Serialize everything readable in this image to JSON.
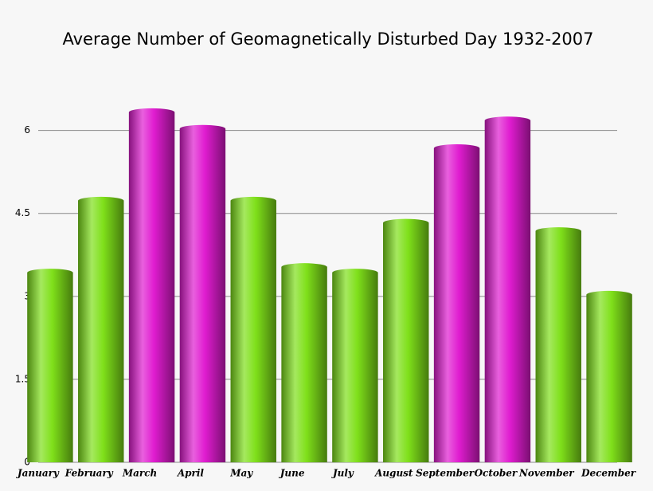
{
  "chart_data": {
    "type": "bar",
    "title": "Average Number of Geomagnetically Disturbed Day 1932-2007",
    "categories": [
      "January",
      "February",
      "March",
      "April",
      "May",
      "June",
      "July",
      "August",
      "September",
      "October",
      "November",
      "December"
    ],
    "values": [
      3.5,
      4.8,
      6.4,
      6.1,
      4.8,
      3.6,
      3.5,
      4.4,
      5.75,
      6.25,
      4.25,
      3.1
    ],
    "colors": [
      "#7fe01a",
      "#7fe01a",
      "#e01cd0",
      "#e01cd0",
      "#7fe01a",
      "#7fe01a",
      "#7fe01a",
      "#7fe01a",
      "#e01cd0",
      "#e01cd0",
      "#7fe01a",
      "#7fe01a"
    ],
    "ylim": [
      0,
      6.6
    ],
    "yticks": [
      0,
      1.5,
      3,
      4.5,
      6
    ],
    "grid": true
  }
}
